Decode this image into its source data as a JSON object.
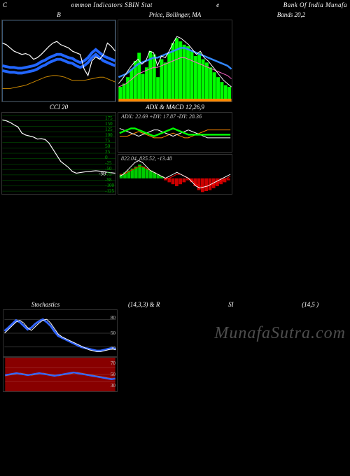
{
  "header": {
    "left": "C",
    "mid": "ommon Indicators SBIN  Stat",
    "mid2": "e",
    "right": "Bank Of India  Munafa"
  },
  "panels_top": {
    "left_title": "B",
    "center_title": "Price,  Bollinger,  MA",
    "right_title": "Bands 20,2"
  },
  "bollinger_left": {
    "line_white": [
      72,
      70,
      66,
      62,
      60,
      58,
      59,
      57,
      52,
      54,
      58,
      63,
      68,
      72,
      74,
      70,
      68,
      66,
      62,
      60,
      58,
      40,
      32,
      50,
      55,
      52,
      58,
      72,
      68,
      62
    ],
    "line_blue_u": [
      44,
      43,
      42,
      42,
      41,
      41,
      42,
      43,
      44,
      46,
      49,
      51,
      54,
      56,
      58,
      58,
      56,
      54,
      53,
      50,
      48,
      50,
      54,
      60,
      64,
      60,
      56,
      54,
      52,
      50
    ],
    "line_blue_l": [
      38,
      37,
      36,
      36,
      35,
      35,
      36,
      37,
      38,
      40,
      43,
      45,
      48,
      50,
      52,
      52,
      50,
      48,
      47,
      44,
      42,
      44,
      48,
      54,
      58,
      54,
      50,
      48,
      46,
      44
    ],
    "line_orange": [
      16,
      16,
      16,
      17,
      18,
      19,
      20,
      22,
      24,
      26,
      28,
      30,
      31,
      32,
      32,
      31,
      30,
      28,
      26,
      26,
      26,
      26,
      27,
      28,
      29,
      30,
      30,
      28,
      26,
      24
    ],
    "colors": {
      "white": "#ffffff",
      "blue": "#2266ff",
      "orange": "#cc8800",
      "border": "#446688"
    }
  },
  "bollinger_right": {
    "bars": [
      18,
      22,
      30,
      40,
      50,
      60,
      34,
      42,
      62,
      58,
      30,
      52,
      48,
      60,
      72,
      78,
      74,
      70,
      68,
      62,
      56,
      60,
      52,
      48,
      42,
      36,
      30,
      24,
      20,
      18
    ],
    "line_white": [
      22,
      28,
      35,
      42,
      48,
      52,
      46,
      50,
      62,
      60,
      44,
      56,
      54,
      62,
      72,
      80,
      78,
      74,
      70,
      64,
      58,
      62,
      54,
      50,
      44,
      38,
      32,
      26,
      22,
      18
    ],
    "line_blue": [
      30,
      32,
      34,
      38,
      42,
      46,
      48,
      50,
      52,
      54,
      54,
      56,
      58,
      60,
      62,
      64,
      66,
      66,
      64,
      62,
      60,
      58,
      56,
      54,
      52,
      50,
      48,
      46,
      44,
      40
    ],
    "line_pink": [
      18,
      20,
      22,
      26,
      30,
      34,
      36,
      38,
      40,
      42,
      42,
      44,
      46,
      48,
      50,
      52,
      54,
      54,
      52,
      50,
      48,
      46,
      44,
      42,
      40,
      38,
      36,
      34,
      32,
      28
    ],
    "colors": {
      "bar_fill": "#00ff00",
      "white": "#ffffff",
      "blue": "#3388ff",
      "pink": "#ff66cc",
      "orange_strip": "#ff8800"
    }
  },
  "cci": {
    "title": "CCI 20",
    "grid_vals": [
      "175",
      "150",
      "125",
      "100",
      "75",
      "50",
      "25",
      "0",
      "-25",
      "-50",
      "-75",
      "-98",
      "-100",
      "-125",
      "-150",
      "-175"
    ],
    "line": [
      165,
      160,
      152,
      140,
      130,
      100,
      90,
      85,
      80,
      70,
      72,
      68,
      50,
      20,
      -10,
      -40,
      -55,
      -70,
      -90,
      -98,
      -95,
      -92,
      -90,
      -88,
      -86,
      -88,
      -90,
      -94,
      -96,
      -98
    ],
    "current_label": "-98",
    "colors": {
      "grid": "#006600",
      "line": "#ffffff",
      "label": "#ffffff"
    }
  },
  "adx_macd": {
    "title": "ADX  & MACD 12,26,9",
    "adx_label": "ADX: 22.69 +DY: 17.87 -DY: 28.36",
    "macd_label": "822.04,  835.52,  -13.48",
    "adx": {
      "line_green": [
        24,
        26,
        28,
        30,
        30,
        28,
        26,
        24,
        22,
        20,
        22,
        24,
        26,
        28,
        30,
        28,
        26,
        24,
        22,
        22,
        22,
        22,
        22,
        22,
        22,
        22,
        22,
        22,
        22,
        22
      ],
      "line_orange": [
        20,
        20,
        20,
        22,
        24,
        26,
        24,
        22,
        20,
        18,
        18,
        18,
        20,
        22,
        24,
        22,
        20,
        18,
        18,
        20,
        22,
        24,
        26,
        28,
        28,
        28,
        28,
        28,
        28,
        28
      ],
      "line_white": [
        30,
        28,
        26,
        24,
        22,
        20,
        22,
        24,
        26,
        28,
        28,
        26,
        24,
        22,
        20,
        22,
        24,
        26,
        28,
        26,
        24,
        22,
        20,
        18,
        18,
        18,
        18,
        18,
        18,
        18
      ]
    },
    "macd": {
      "bars": [
        4,
        6,
        8,
        10,
        12,
        14,
        12,
        10,
        8,
        6,
        4,
        2,
        -2,
        -4,
        -6,
        -8,
        -6,
        -4,
        -2,
        -4,
        -8,
        -12,
        -14,
        -13,
        -12,
        -10,
        -8,
        -6,
        -4,
        -2
      ],
      "line_white": [
        -2,
        0,
        4,
        8,
        12,
        14,
        12,
        8,
        4,
        2,
        0,
        -2,
        -4,
        -2,
        0,
        2,
        0,
        -2,
        -4,
        -8,
        -12,
        -14,
        -13,
        -12,
        -10,
        -8,
        -6,
        -4,
        -2,
        0
      ],
      "line_red": [
        0,
        0,
        2,
        4,
        6,
        8,
        8,
        6,
        4,
        2,
        0,
        -2,
        -4,
        -4,
        -2,
        0,
        0,
        -2,
        -4,
        -6,
        -10,
        -12,
        -13,
        -12,
        -11,
        -10,
        -8,
        -6,
        -4,
        -2
      ]
    },
    "colors": {
      "green": "#00ff00",
      "orange": "#ff8800",
      "white": "#ffffff",
      "red": "#ff0000",
      "hist_pos": "#00cc00",
      "hist_neg": "#cc0000"
    }
  },
  "stoch": {
    "title_left": "Stochastics",
    "title_mid1": "(14,3,3) & R",
    "title_mid2": "SI",
    "title_right": "(14,5                     )",
    "labels": [
      "80",
      "50",
      "20"
    ],
    "rsi_labels": [
      "70",
      "50",
      "30"
    ],
    "line_blue": [
      55,
      62,
      70,
      78,
      74,
      66,
      58,
      62,
      70,
      76,
      80,
      74,
      66,
      54,
      44,
      40,
      36,
      32,
      28,
      24,
      20,
      18,
      16,
      14,
      12,
      12,
      14,
      16,
      18,
      16
    ],
    "line_white": [
      50,
      58,
      66,
      74,
      78,
      72,
      62,
      56,
      64,
      72,
      78,
      80,
      72,
      60,
      48,
      42,
      38,
      34,
      30,
      26,
      22,
      18,
      14,
      12,
      10,
      10,
      12,
      14,
      16,
      14
    ],
    "rsi_blue": [
      48,
      50,
      52,
      54,
      52,
      50,
      48,
      50,
      52,
      54,
      52,
      50,
      48,
      46,
      48,
      50,
      52,
      54,
      56,
      54,
      52,
      50,
      48,
      46,
      44,
      42,
      40,
      38,
      36,
      38
    ],
    "rsi_orange": [
      46,
      48,
      50,
      52,
      54,
      52,
      50,
      48,
      50,
      52,
      54,
      52,
      50,
      48,
      46,
      48,
      50,
      52,
      54,
      56,
      54,
      52,
      50,
      48,
      46,
      44,
      42,
      40,
      38,
      36
    ],
    "colors": {
      "stoch_bg": "#000000",
      "rsi_bg": "#880000",
      "blue": "#3366ff",
      "white": "#ffffff",
      "orange": "#ff8800",
      "hline": "#666666"
    }
  },
  "watermark": "MunafaSutra.com"
}
